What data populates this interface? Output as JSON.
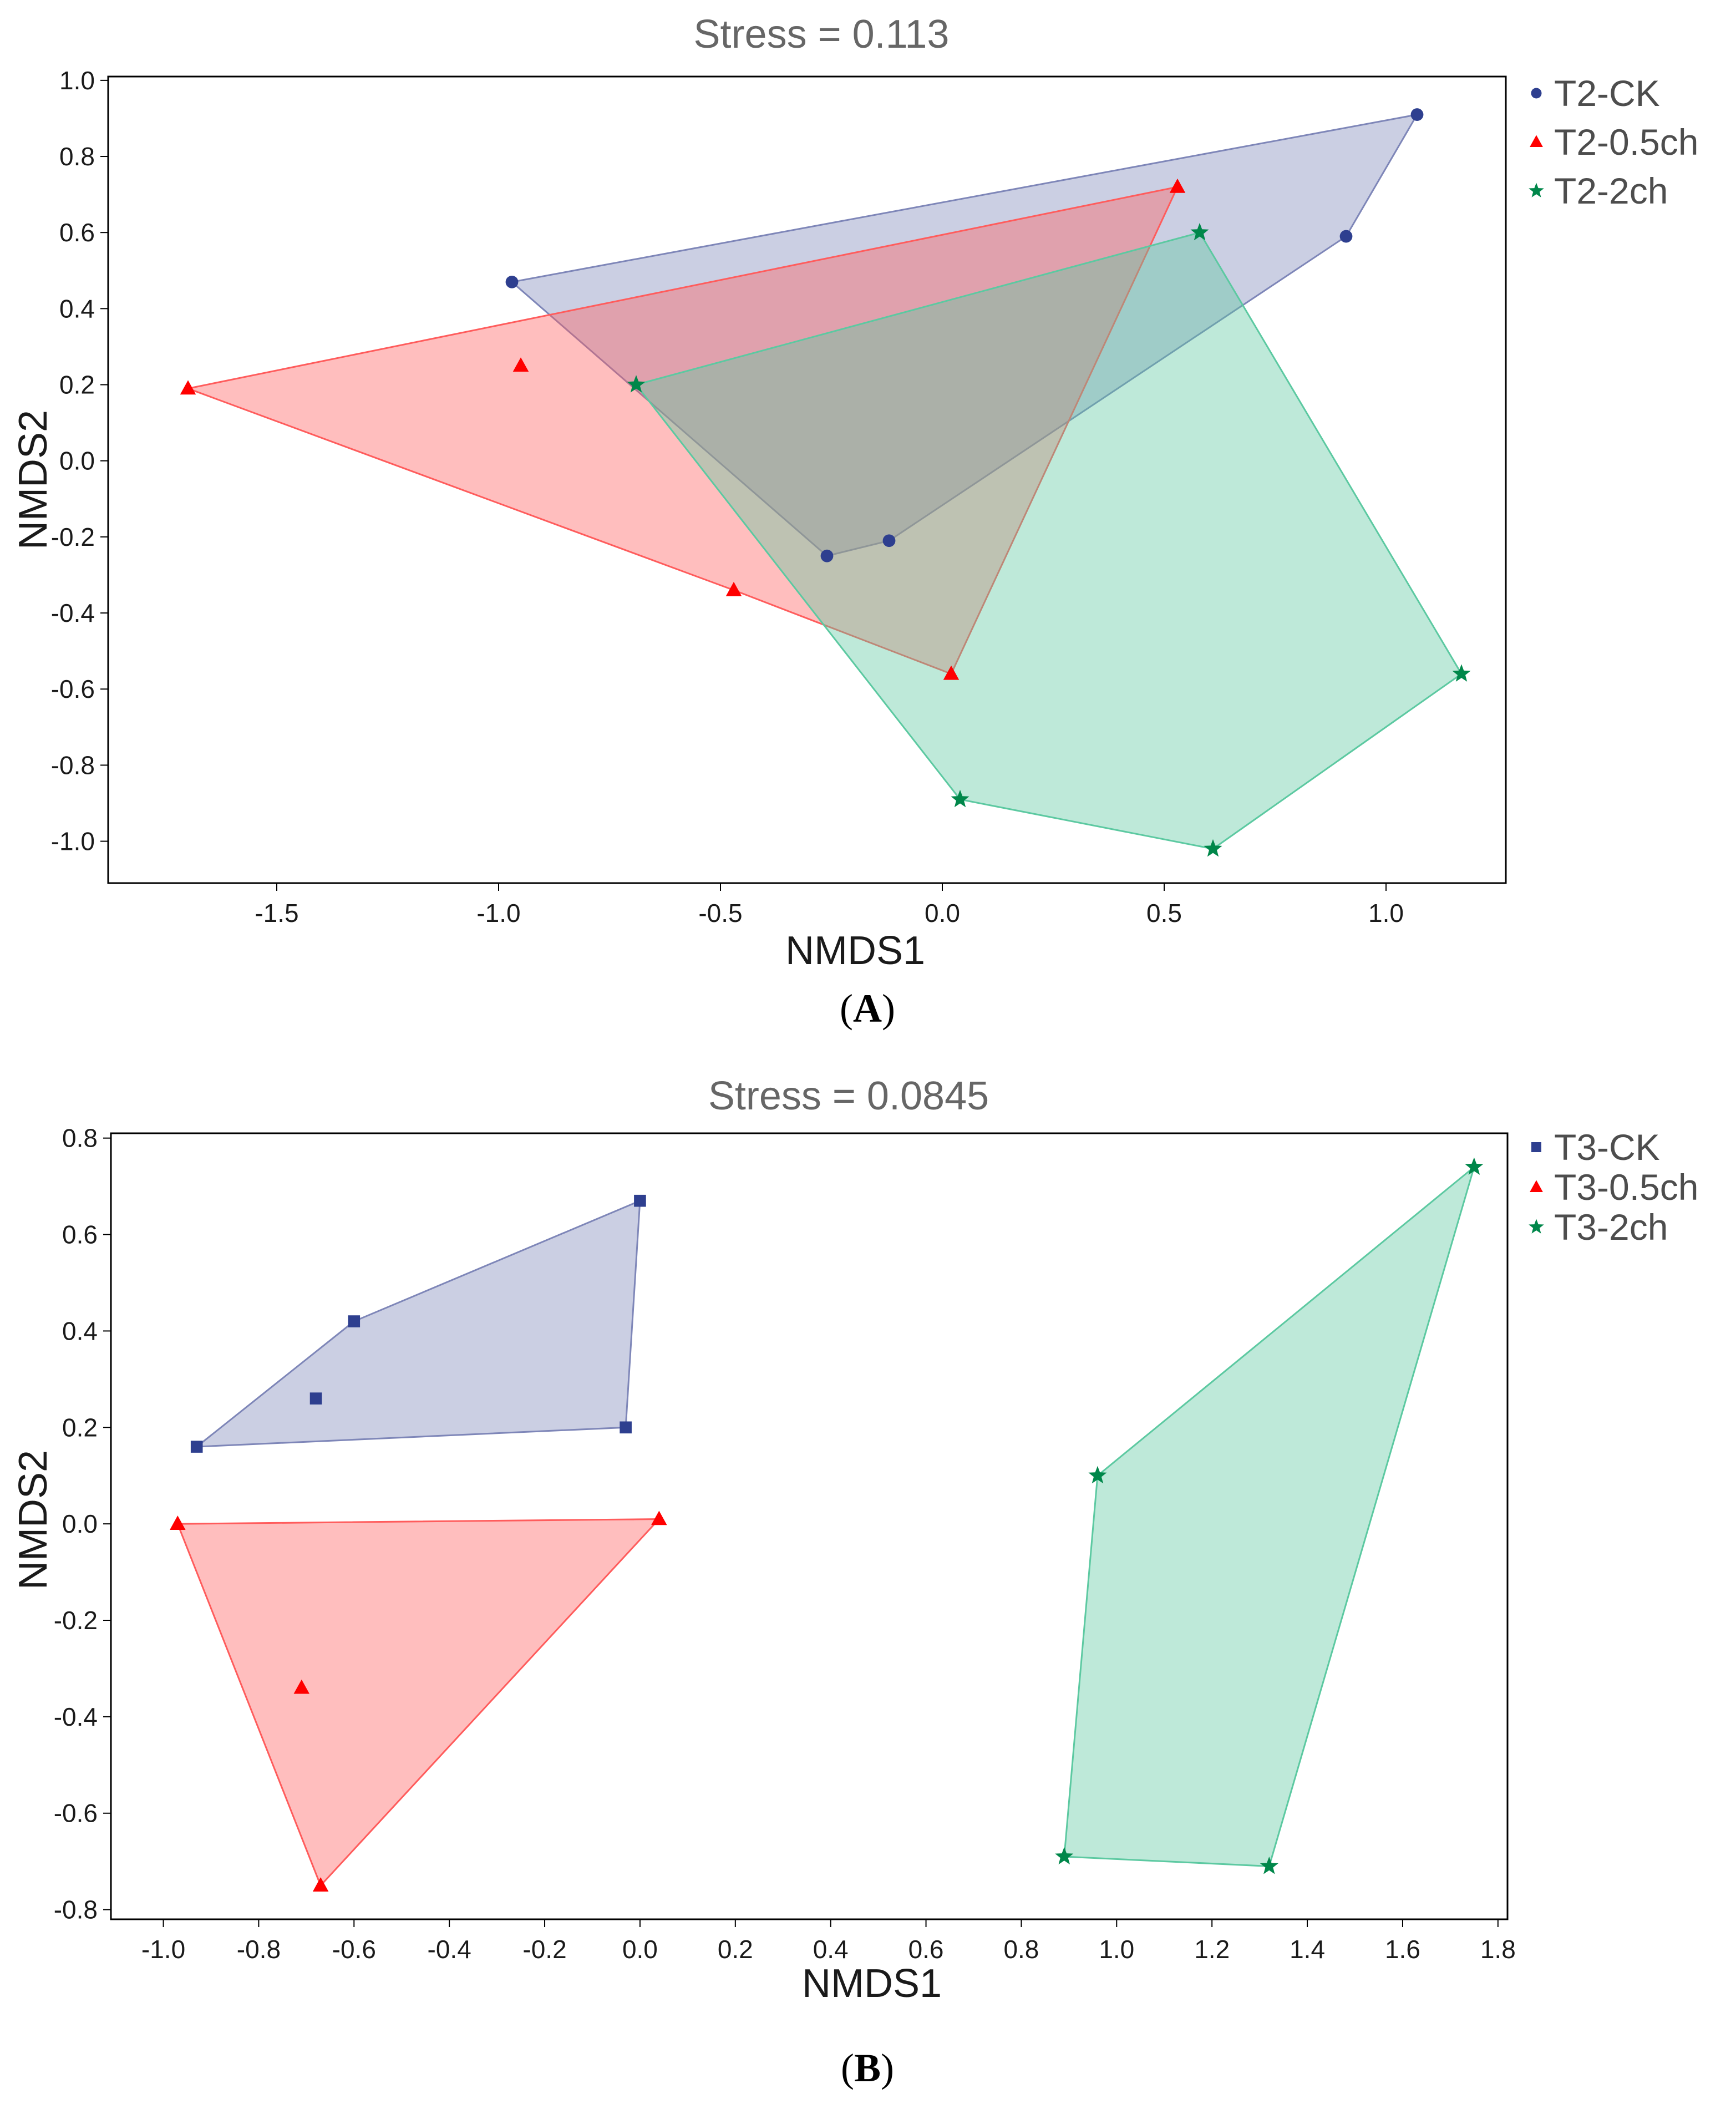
{
  "chart_data": [
    {
      "type": "scatter",
      "panel_label": "A",
      "title": "Stress = 0.113",
      "xlabel": "NMDS1",
      "ylabel": "NMDS2",
      "xlim": [
        -1.88,
        1.27
      ],
      "ylim": [
        -1.11,
        1.01
      ],
      "xticks": [
        -1.5,
        -1.0,
        -0.5,
        0.0,
        0.5,
        1.0
      ],
      "xtick_labels": [
        "-1.5",
        "-1.0",
        "-0.5",
        "0.0",
        "0.5",
        "1.0"
      ],
      "yticks": [
        1.0,
        0.8,
        0.6,
        0.4,
        0.2,
        0.0,
        -0.2,
        -0.4,
        -0.6,
        -0.8,
        -1.0
      ],
      "ytick_labels": [
        "1.0",
        "0.8",
        "0.6",
        "0.4",
        "0.2",
        "0.0",
        "-0.2",
        "-0.4",
        "-0.6",
        "-0.8",
        "-1.0"
      ],
      "legend_position": "right, outside top",
      "hull_fill": "convex hull per group",
      "series": [
        {
          "name": "T2-CK",
          "marker": "circle",
          "color": "#2e3f8f",
          "fill_color": "#7e86b8",
          "points": [
            [
              -0.97,
              0.47
            ],
            [
              1.07,
              0.91
            ],
            [
              0.91,
              0.59
            ],
            [
              -0.26,
              -0.25
            ],
            [
              -0.12,
              -0.21
            ]
          ],
          "hull": [
            [
              -0.97,
              0.47
            ],
            [
              1.07,
              0.91
            ],
            [
              0.91,
              0.59
            ],
            [
              -0.12,
              -0.21
            ],
            [
              -0.26,
              -0.25
            ]
          ]
        },
        {
          "name": "T2-0.5ch",
          "marker": "triangle",
          "color": "#ff0000",
          "fill_color": "#ff5c5c",
          "points": [
            [
              -1.7,
              0.19
            ],
            [
              -0.95,
              0.25
            ],
            [
              0.53,
              0.72
            ],
            [
              -0.47,
              -0.34
            ],
            [
              0.02,
              -0.56
            ]
          ],
          "hull": [
            [
              -1.7,
              0.19
            ],
            [
              0.53,
              0.72
            ],
            [
              0.02,
              -0.56
            ],
            [
              -0.47,
              -0.34
            ]
          ]
        },
        {
          "name": "T2-2ch",
          "marker": "star",
          "color": "#00874a",
          "fill_color": "#5cc9a1",
          "points": [
            [
              -0.69,
              0.2
            ],
            [
              0.58,
              0.6
            ],
            [
              1.17,
              -0.56
            ],
            [
              0.61,
              -1.02
            ],
            [
              0.04,
              -0.89
            ]
          ],
          "hull": [
            [
              -0.69,
              0.2
            ],
            [
              0.58,
              0.6
            ],
            [
              1.17,
              -0.56
            ],
            [
              0.61,
              -1.02
            ],
            [
              0.04,
              -0.89
            ]
          ]
        }
      ]
    },
    {
      "type": "scatter",
      "panel_label": "B",
      "title": "Stress = 0.0845",
      "xlabel": "NMDS1",
      "ylabel": "NMDS2",
      "xlim": [
        -1.11,
        1.82
      ],
      "ylim": [
        -0.82,
        0.81
      ],
      "xticks": [
        -1.0,
        -0.8,
        -0.6,
        -0.4,
        -0.2,
        0.0,
        0.2,
        0.4,
        0.6,
        0.8,
        1.0,
        1.2,
        1.4,
        1.6,
        1.8
      ],
      "xtick_labels": [
        "-1.0",
        "-0.8",
        "-0.6",
        "-0.4",
        "-0.2",
        "0.0",
        "0.2",
        "0.4",
        "0.6",
        "0.8",
        "1.0",
        "1.2",
        "1.4",
        "1.6",
        "1.8"
      ],
      "yticks": [
        0.8,
        0.6,
        0.4,
        0.2,
        0.0,
        -0.2,
        -0.4,
        -0.6,
        -0.8
      ],
      "ytick_labels": [
        "0.8",
        "0.6",
        "0.4",
        "0.2",
        "0.0",
        "-0.2",
        "-0.4",
        "-0.6",
        "-0.8"
      ],
      "legend_position": "right, outside top",
      "hull_fill": "convex hull per group",
      "series": [
        {
          "name": "T3-CK",
          "marker": "square",
          "color": "#2e3f8f",
          "fill_color": "#7e86b8",
          "points": [
            [
              -0.93,
              0.16
            ],
            [
              -0.6,
              0.42
            ],
            [
              -0.68,
              0.26
            ],
            [
              0.0,
              0.67
            ],
            [
              -0.03,
              0.2
            ]
          ],
          "hull": [
            [
              -0.93,
              0.16
            ],
            [
              -0.6,
              0.42
            ],
            [
              0.0,
              0.67
            ],
            [
              -0.03,
              0.2
            ]
          ]
        },
        {
          "name": "T3-0.5ch",
          "marker": "triangle",
          "color": "#ff0000",
          "fill_color": "#ff5c5c",
          "points": [
            [
              -0.97,
              0.0
            ],
            [
              0.04,
              0.01
            ],
            [
              -0.71,
              -0.34
            ],
            [
              -0.67,
              -0.75
            ]
          ],
          "hull": [
            [
              -0.97,
              0.0
            ],
            [
              0.04,
              0.01
            ],
            [
              -0.67,
              -0.75
            ]
          ]
        },
        {
          "name": "T3-2ch",
          "marker": "star",
          "color": "#00874a",
          "fill_color": "#5cc9a1",
          "points": [
            [
              1.75,
              0.74
            ],
            [
              0.96,
              0.1
            ],
            [
              0.89,
              -0.69
            ],
            [
              1.32,
              -0.71
            ]
          ],
          "hull": [
            [
              1.75,
              0.74
            ],
            [
              0.96,
              0.1
            ],
            [
              0.89,
              -0.69
            ],
            [
              1.32,
              -0.71
            ]
          ]
        }
      ]
    }
  ]
}
